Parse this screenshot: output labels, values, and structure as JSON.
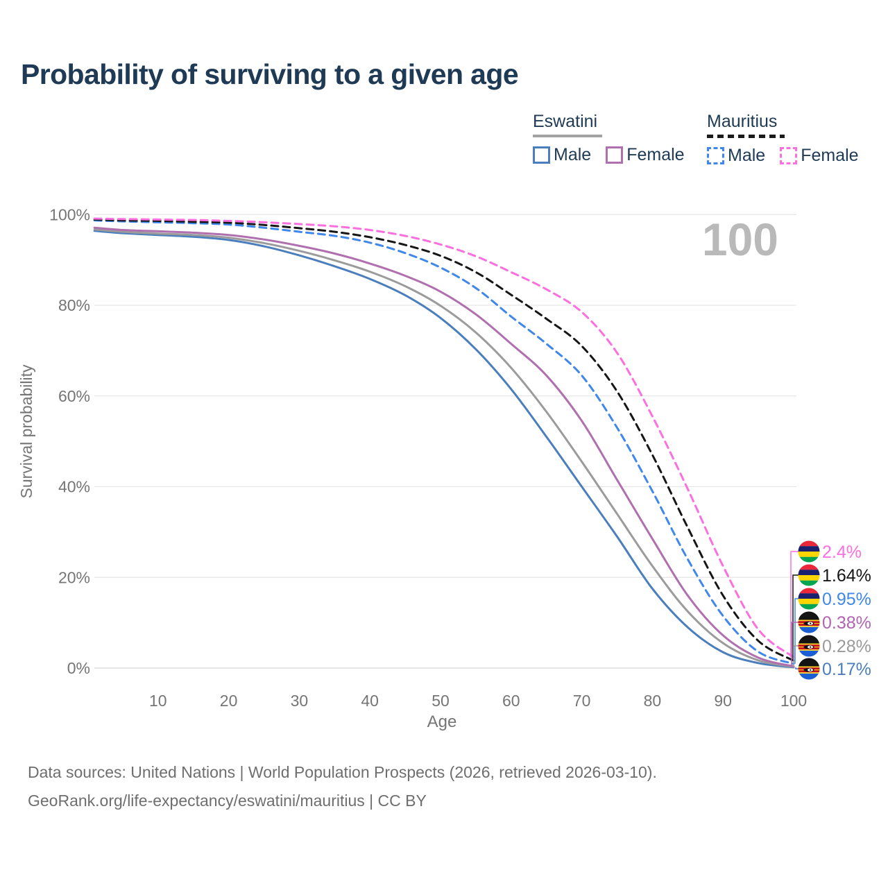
{
  "title": "Probability of surviving to a given age",
  "legend": {
    "groups": [
      {
        "name": "Eswatini",
        "line_style": "solid",
        "line_color": "#a3a3a3",
        "items": [
          {
            "label": "Male",
            "color": "#4a7ebc",
            "style": "solid"
          },
          {
            "label": "Female",
            "color": "#b06fae",
            "style": "solid"
          }
        ]
      },
      {
        "name": "Mauritius",
        "line_style": "dashed",
        "line_color": "#1b1b1b",
        "items": [
          {
            "label": "Male",
            "color": "#3f87ea",
            "style": "dashed"
          },
          {
            "label": "Female",
            "color": "#fb6fde",
            "style": "dashed"
          }
        ]
      }
    ]
  },
  "chart_data": {
    "type": "line",
    "title": "Probability of surviving to a given age",
    "xlabel": "Age",
    "ylabel": "Survival probability",
    "xlim": [
      0,
      100
    ],
    "ylim": [
      0,
      100
    ],
    "grid": "horizontal",
    "age_hover_marker": "100",
    "x": [
      1,
      5,
      10,
      15,
      20,
      25,
      30,
      35,
      40,
      45,
      50,
      55,
      60,
      65,
      70,
      75,
      80,
      85,
      90,
      95,
      100
    ],
    "xticks": [
      {
        "v": 10,
        "label": "10"
      },
      {
        "v": 20,
        "label": "20"
      },
      {
        "v": 30,
        "label": "30"
      },
      {
        "v": 40,
        "label": "40"
      },
      {
        "v": 50,
        "label": "50"
      },
      {
        "v": 60,
        "label": "60"
      },
      {
        "v": 70,
        "label": "70"
      },
      {
        "v": 80,
        "label": "80"
      },
      {
        "v": 90,
        "label": "90"
      },
      {
        "v": 100,
        "label": "100"
      }
    ],
    "yticks": [
      {
        "v": 0,
        "label": "0%"
      },
      {
        "v": 20,
        "label": "20%"
      },
      {
        "v": 40,
        "label": "40%"
      },
      {
        "v": 60,
        "label": "60%"
      },
      {
        "v": 80,
        "label": "80%"
      },
      {
        "v": 100,
        "label": "100%"
      }
    ],
    "series": [
      {
        "name": "Eswatini Male",
        "country": "eswatini",
        "sex": "male",
        "color": "#4a7ebc",
        "dashed": false,
        "values": [
          96.4,
          95.9,
          95.5,
          95.1,
          94.4,
          93.0,
          91.0,
          88.6,
          85.8,
          82.2,
          77.2,
          70.3,
          61.5,
          51.0,
          40.0,
          29.0,
          17.5,
          9.0,
          3.5,
          1.1,
          0.17
        ]
      },
      {
        "name": "Eswatini Both sexes",
        "country": "eswatini",
        "sex": "both",
        "color": "#9b9b9b",
        "dashed": false,
        "values": [
          96.7,
          96.2,
          95.8,
          95.5,
          94.9,
          93.7,
          92.0,
          89.9,
          87.4,
          84.2,
          79.9,
          74.0,
          66.2,
          56.5,
          45.5,
          34.0,
          22.5,
          12.5,
          5.5,
          1.7,
          0.28
        ]
      },
      {
        "name": "Eswatini Female",
        "country": "eswatini",
        "sex": "female",
        "color": "#b06fae",
        "dashed": false,
        "values": [
          97.1,
          96.6,
          96.3,
          96.0,
          95.5,
          94.5,
          93.1,
          91.4,
          89.2,
          86.5,
          83.0,
          78.0,
          71.5,
          64.5,
          54.5,
          41.5,
          28.5,
          16.0,
          7.2,
          2.3,
          0.38
        ]
      },
      {
        "name": "Mauritius Male",
        "country": "mauritius",
        "sex": "male",
        "color": "#3f87ea",
        "dashed": true,
        "values": [
          98.7,
          98.5,
          98.3,
          98.1,
          97.8,
          97.1,
          96.2,
          95.3,
          93.8,
          91.5,
          88.3,
          83.8,
          77.5,
          71.5,
          64.5,
          53.0,
          39.0,
          24.0,
          11.5,
          3.6,
          0.95
        ]
      },
      {
        "name": "Mauritius Both sexes",
        "country": "mauritius",
        "sex": "both",
        "color": "#161616",
        "dashed": true,
        "values": [
          98.9,
          98.7,
          98.6,
          98.4,
          98.2,
          97.7,
          97.0,
          96.2,
          95.0,
          93.3,
          90.9,
          87.3,
          82.3,
          77.0,
          71.0,
          61.0,
          47.0,
          31.0,
          16.0,
          6.0,
          1.64
        ]
      },
      {
        "name": "Mauritius Female",
        "country": "mauritius",
        "sex": "female",
        "color": "#fb6fde",
        "dashed": true,
        "values": [
          99.1,
          99.0,
          98.9,
          98.8,
          98.6,
          98.3,
          97.9,
          97.4,
          96.6,
          95.3,
          93.4,
          90.8,
          87.3,
          83.5,
          78.5,
          69.5,
          55.5,
          39.5,
          22.5,
          8.5,
          2.4
        ]
      }
    ],
    "end_labels": [
      {
        "label": "2.4%",
        "value": 2.4,
        "color": "#fb6fde",
        "flag": "mauritius",
        "series": "Mauritius Female"
      },
      {
        "label": "1.64%",
        "value": 1.64,
        "color": "#161616",
        "flag": "mauritius",
        "series": "Mauritius Both sexes"
      },
      {
        "label": "0.95%",
        "value": 0.95,
        "color": "#3f87ea",
        "flag": "mauritius",
        "series": "Mauritius Male"
      },
      {
        "label": "0.38%",
        "value": 0.38,
        "color": "#b263b2",
        "flag": "eswatini",
        "series": "Eswatini Female"
      },
      {
        "label": "0.28%",
        "value": 0.28,
        "color": "#9b9b9b",
        "flag": "eswatini",
        "series": "Eswatini Both sexes"
      },
      {
        "label": "0.17%",
        "value": 0.17,
        "color": "#4a7ebc",
        "flag": "eswatini",
        "series": "Eswatini Male"
      }
    ]
  },
  "flags": {
    "mauritius": {
      "icon": "mauritius-flag-icon",
      "stripes": [
        "#EA2839",
        "#1A206D",
        "#FFD500",
        "#00A551"
      ]
    },
    "eswatini": {
      "icon": "eswatini-flag-icon",
      "bands": [
        "#141414",
        "#FFD520",
        "#C4111B",
        "#FFD520",
        "#1a5fd4"
      ]
    }
  },
  "footer": {
    "line1": "Data sources: United Nations | World Population Prospects (2026, retrieved 2026-03-10).",
    "line2": "GeoRank.org/life-expectancy/eswatini/mauritius | CC BY"
  }
}
